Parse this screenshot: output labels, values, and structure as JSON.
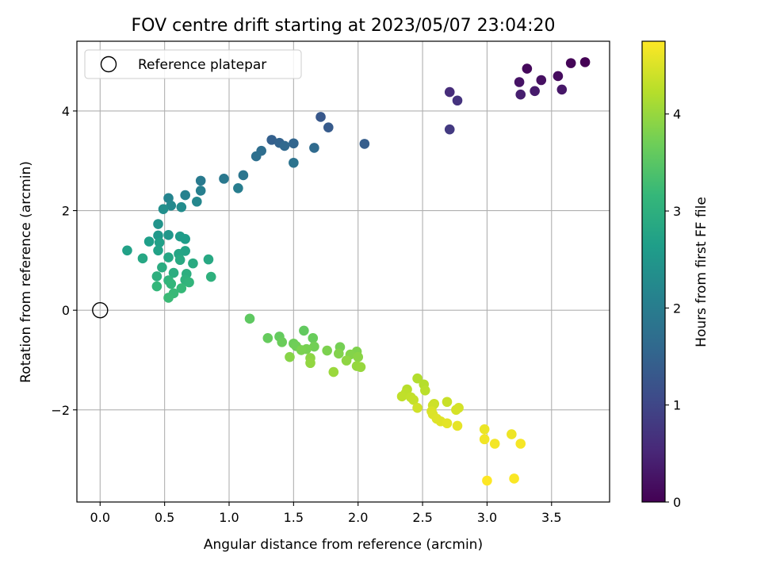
{
  "chart_data": {
    "type": "scatter",
    "title": "FOV centre drift starting at 2023/05/07 23:04:20",
    "xlabel": "Angular distance from reference (arcmin)",
    "ylabel": "Rotation from reference (arcmin)",
    "xlim": [
      -0.18,
      3.95
    ],
    "ylim": [
      -3.85,
      5.4
    ],
    "xticks": [
      0.0,
      0.5,
      1.0,
      1.5,
      2.0,
      2.5,
      3.0,
      3.5
    ],
    "xtick_labels": [
      "0.0",
      "0.5",
      "1.0",
      "1.5",
      "2.0",
      "2.5",
      "3.0",
      "3.5"
    ],
    "yticks": [
      -2,
      0,
      2,
      4
    ],
    "ytick_labels": [
      "−2",
      "0",
      "2",
      "4"
    ],
    "grid": true,
    "legend": {
      "placement": "upper-left",
      "entries": [
        "Reference platepar"
      ]
    },
    "reference_point": {
      "x": 0.0,
      "y": 0.0
    },
    "colorbar": {
      "label": "Hours from first FF file",
      "range": [
        0,
        4.75
      ],
      "ticks": [
        0,
        1,
        2,
        3,
        4
      ],
      "tick_labels": [
        "0",
        "1",
        "2",
        "3",
        "4"
      ],
      "colormap": "viridis"
    },
    "points": [
      {
        "x": 3.76,
        "y": 4.98,
        "c": 0.0
      },
      {
        "x": 3.65,
        "y": 4.96,
        "c": 0.05
      },
      {
        "x": 3.31,
        "y": 4.85,
        "c": 0.1
      },
      {
        "x": 3.55,
        "y": 4.7,
        "c": 0.15
      },
      {
        "x": 3.42,
        "y": 4.62,
        "c": 0.2
      },
      {
        "x": 3.25,
        "y": 4.58,
        "c": 0.25
      },
      {
        "x": 3.58,
        "y": 4.43,
        "c": 0.3
      },
      {
        "x": 3.37,
        "y": 4.4,
        "c": 0.35
      },
      {
        "x": 3.26,
        "y": 4.33,
        "c": 0.4
      },
      {
        "x": 2.71,
        "y": 4.38,
        "c": 0.6
      },
      {
        "x": 2.77,
        "y": 4.21,
        "c": 0.7
      },
      {
        "x": 2.71,
        "y": 3.63,
        "c": 0.8
      },
      {
        "x": 1.71,
        "y": 3.88,
        "c": 1.3
      },
      {
        "x": 1.77,
        "y": 3.67,
        "c": 1.35
      },
      {
        "x": 2.05,
        "y": 3.34,
        "c": 1.4
      },
      {
        "x": 1.33,
        "y": 3.42,
        "c": 1.45
      },
      {
        "x": 1.39,
        "y": 3.36,
        "c": 1.5
      },
      {
        "x": 1.5,
        "y": 3.35,
        "c": 1.55
      },
      {
        "x": 1.43,
        "y": 3.3,
        "c": 1.6
      },
      {
        "x": 1.66,
        "y": 3.26,
        "c": 1.65
      },
      {
        "x": 1.25,
        "y": 3.2,
        "c": 1.7
      },
      {
        "x": 1.21,
        "y": 3.09,
        "c": 1.75
      },
      {
        "x": 1.5,
        "y": 2.96,
        "c": 1.8
      },
      {
        "x": 1.11,
        "y": 2.71,
        "c": 1.85
      },
      {
        "x": 0.96,
        "y": 2.64,
        "c": 1.9
      },
      {
        "x": 0.78,
        "y": 2.6,
        "c": 1.95
      },
      {
        "x": 1.07,
        "y": 2.45,
        "c": 2.0
      },
      {
        "x": 0.78,
        "y": 2.4,
        "c": 2.05
      },
      {
        "x": 0.66,
        "y": 2.31,
        "c": 2.1
      },
      {
        "x": 0.53,
        "y": 2.25,
        "c": 2.15
      },
      {
        "x": 0.75,
        "y": 2.18,
        "c": 2.2
      },
      {
        "x": 0.55,
        "y": 2.1,
        "c": 2.25
      },
      {
        "x": 0.63,
        "y": 2.07,
        "c": 2.3
      },
      {
        "x": 0.49,
        "y": 2.03,
        "c": 2.35
      },
      {
        "x": 0.45,
        "y": 1.73,
        "c": 2.45
      },
      {
        "x": 0.53,
        "y": 1.51,
        "c": 2.5
      },
      {
        "x": 0.45,
        "y": 1.5,
        "c": 2.55
      },
      {
        "x": 0.62,
        "y": 1.48,
        "c": 2.6
      },
      {
        "x": 0.66,
        "y": 1.43,
        "c": 2.62
      },
      {
        "x": 0.38,
        "y": 1.38,
        "c": 2.65
      },
      {
        "x": 0.46,
        "y": 1.36,
        "c": 2.68
      },
      {
        "x": 0.21,
        "y": 1.2,
        "c": 2.7
      },
      {
        "x": 0.45,
        "y": 1.2,
        "c": 2.72
      },
      {
        "x": 0.66,
        "y": 1.19,
        "c": 2.75
      },
      {
        "x": 0.61,
        "y": 1.13,
        "c": 2.78
      },
      {
        "x": 0.53,
        "y": 1.06,
        "c": 2.8
      },
      {
        "x": 0.33,
        "y": 1.04,
        "c": 2.82
      },
      {
        "x": 0.84,
        "y": 1.02,
        "c": 2.85
      },
      {
        "x": 0.62,
        "y": 1.01,
        "c": 2.88
      },
      {
        "x": 0.72,
        "y": 0.94,
        "c": 2.9
      },
      {
        "x": 0.48,
        "y": 0.86,
        "c": 2.92
      },
      {
        "x": 0.57,
        "y": 0.75,
        "c": 2.95
      },
      {
        "x": 0.67,
        "y": 0.73,
        "c": 2.98
      },
      {
        "x": 0.44,
        "y": 0.68,
        "c": 3.0
      },
      {
        "x": 0.86,
        "y": 0.67,
        "c": 3.02
      },
      {
        "x": 0.66,
        "y": 0.61,
        "c": 3.05
      },
      {
        "x": 0.53,
        "y": 0.6,
        "c": 3.08
      },
      {
        "x": 0.69,
        "y": 0.56,
        "c": 3.1
      },
      {
        "x": 0.55,
        "y": 0.53,
        "c": 3.12
      },
      {
        "x": 0.44,
        "y": 0.48,
        "c": 3.15
      },
      {
        "x": 0.63,
        "y": 0.44,
        "c": 3.18
      },
      {
        "x": 0.57,
        "y": 0.34,
        "c": 3.2
      },
      {
        "x": 0.53,
        "y": 0.25,
        "c": 3.22
      },
      {
        "x": 1.16,
        "y": -0.17,
        "c": 3.55
      },
      {
        "x": 1.58,
        "y": -0.41,
        "c": 3.58
      },
      {
        "x": 1.39,
        "y": -0.53,
        "c": 3.6
      },
      {
        "x": 1.3,
        "y": -0.56,
        "c": 3.62
      },
      {
        "x": 1.65,
        "y": -0.56,
        "c": 3.64
      },
      {
        "x": 1.41,
        "y": -0.64,
        "c": 3.66
      },
      {
        "x": 1.5,
        "y": -0.67,
        "c": 3.68
      },
      {
        "x": 1.52,
        "y": -0.72,
        "c": 3.7
      },
      {
        "x": 1.66,
        "y": -0.73,
        "c": 3.72
      },
      {
        "x": 1.86,
        "y": -0.74,
        "c": 3.74
      },
      {
        "x": 1.6,
        "y": -0.78,
        "c": 3.76
      },
      {
        "x": 1.56,
        "y": -0.8,
        "c": 3.78
      },
      {
        "x": 1.76,
        "y": -0.81,
        "c": 3.8
      },
      {
        "x": 1.99,
        "y": -0.83,
        "c": 3.82
      },
      {
        "x": 1.85,
        "y": -0.87,
        "c": 3.84
      },
      {
        "x": 1.94,
        "y": -0.89,
        "c": 3.86
      },
      {
        "x": 1.47,
        "y": -0.94,
        "c": 3.88
      },
      {
        "x": 2.0,
        "y": -0.94,
        "c": 3.9
      },
      {
        "x": 1.63,
        "y": -0.96,
        "c": 3.92
      },
      {
        "x": 1.91,
        "y": -1.01,
        "c": 3.94
      },
      {
        "x": 1.63,
        "y": -1.06,
        "c": 3.96
      },
      {
        "x": 1.99,
        "y": -1.12,
        "c": 3.98
      },
      {
        "x": 2.02,
        "y": -1.14,
        "c": 4.0
      },
      {
        "x": 1.81,
        "y": -1.24,
        "c": 4.02
      },
      {
        "x": 2.46,
        "y": -1.37,
        "c": 4.2
      },
      {
        "x": 2.51,
        "y": -1.49,
        "c": 4.22
      },
      {
        "x": 2.38,
        "y": -1.59,
        "c": 4.24
      },
      {
        "x": 2.52,
        "y": -1.61,
        "c": 4.26
      },
      {
        "x": 2.37,
        "y": -1.66,
        "c": 4.28
      },
      {
        "x": 2.34,
        "y": -1.73,
        "c": 4.3
      },
      {
        "x": 2.41,
        "y": -1.75,
        "c": 4.32
      },
      {
        "x": 2.43,
        "y": -1.8,
        "c": 4.34
      },
      {
        "x": 2.69,
        "y": -1.84,
        "c": 4.36
      },
      {
        "x": 2.59,
        "y": -1.88,
        "c": 4.38
      },
      {
        "x": 2.58,
        "y": -1.91,
        "c": 4.4
      },
      {
        "x": 2.46,
        "y": -1.96,
        "c": 4.42
      },
      {
        "x": 2.78,
        "y": -1.96,
        "c": 4.44
      },
      {
        "x": 2.76,
        "y": -2.0,
        "c": 4.46
      },
      {
        "x": 2.57,
        "y": -2.03,
        "c": 4.48
      },
      {
        "x": 2.58,
        "y": -2.09,
        "c": 4.5
      },
      {
        "x": 2.61,
        "y": -2.18,
        "c": 4.52
      },
      {
        "x": 2.64,
        "y": -2.23,
        "c": 4.54
      },
      {
        "x": 2.69,
        "y": -2.27,
        "c": 4.56
      },
      {
        "x": 2.77,
        "y": -2.32,
        "c": 4.58
      },
      {
        "x": 2.98,
        "y": -2.39,
        "c": 4.62
      },
      {
        "x": 3.19,
        "y": -2.49,
        "c": 4.64
      },
      {
        "x": 2.98,
        "y": -2.59,
        "c": 4.66
      },
      {
        "x": 3.06,
        "y": -2.68,
        "c": 4.68
      },
      {
        "x": 3.26,
        "y": -2.68,
        "c": 4.7
      },
      {
        "x": 3.21,
        "y": -3.38,
        "c": 4.73
      },
      {
        "x": 3.0,
        "y": -3.42,
        "c": 4.75
      }
    ]
  }
}
